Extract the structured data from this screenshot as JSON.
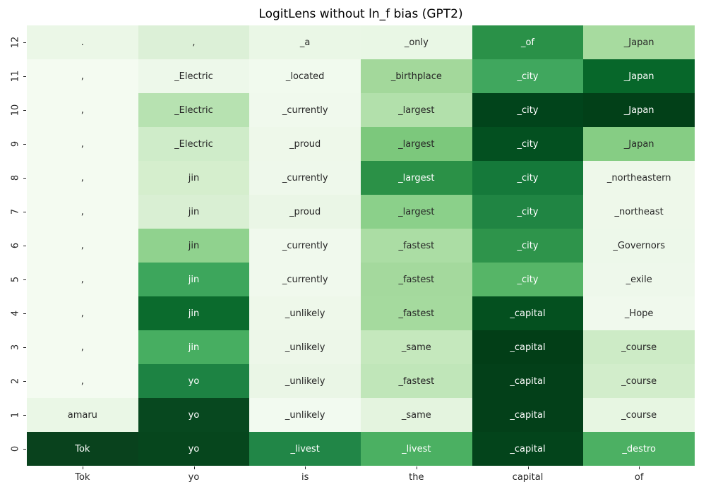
{
  "figure": {
    "background": "#ffffff",
    "tick_color": "#262626"
  },
  "chart_data": {
    "type": "heatmap",
    "title": "LogitLens without ln_f bias (GPT2)",
    "xlabel": "",
    "ylabel": "",
    "colormap": "Greens",
    "legend": "none",
    "grid": "off",
    "annotation_dark_text": "#262626",
    "annotation_light_text": "#ffffff",
    "x_tick_labels": [
      "Tok",
      "yo",
      "is",
      "the",
      "capital",
      "of"
    ],
    "y_tick_labels": [
      "12",
      "11",
      "10",
      "9",
      "8",
      "7",
      "6",
      "5",
      "4",
      "3",
      "2",
      "1",
      "0"
    ],
    "rows": [
      {
        "layer": "12",
        "cells": [
          {
            "token": ".",
            "color": "#ebf7e7"
          },
          {
            "token": ",",
            "color": "#dcf0d7"
          },
          {
            "token": "_a",
            "color": "#eaf7e6"
          },
          {
            "token": "_only",
            "color": "#e9f7e5"
          },
          {
            "token": "_of",
            "color": "#2a9148"
          },
          {
            "token": "_Japan",
            "color": "#a7db9f"
          }
        ]
      },
      {
        "layer": "11",
        "cells": [
          {
            "token": ",",
            "color": "#f4fbf1"
          },
          {
            "token": "_Electric",
            "color": "#edf8ea"
          },
          {
            "token": "_located",
            "color": "#f1faee"
          },
          {
            "token": "_birthplace",
            "color": "#a3d89b"
          },
          {
            "token": "_city",
            "color": "#40a75e"
          },
          {
            "token": "_Japan",
            "color": "#07672a"
          }
        ]
      },
      {
        "layer": "10",
        "cells": [
          {
            "token": ",",
            "color": "#f4fbf1"
          },
          {
            "token": "_Electric",
            "color": "#b7e2b1"
          },
          {
            "token": "_currently",
            "color": "#f0f9ed"
          },
          {
            "token": "_largest",
            "color": "#b2e0ab"
          },
          {
            "token": "_city",
            "color": "#01441b"
          },
          {
            "token": "_Japan",
            "color": "#024018"
          }
        ]
      },
      {
        "layer": "9",
        "cells": [
          {
            "token": ",",
            "color": "#f4fbf1"
          },
          {
            "token": "_Electric",
            "color": "#cfecc9"
          },
          {
            "token": "_proud",
            "color": "#eef8ea"
          },
          {
            "token": "_largest",
            "color": "#7cc87c"
          },
          {
            "token": "_city",
            "color": "#035020"
          },
          {
            "token": "_Japan",
            "color": "#86cd84"
          }
        ]
      },
      {
        "layer": "8",
        "cells": [
          {
            "token": ",",
            "color": "#f4fbf1"
          },
          {
            "token": "jin",
            "color": "#d5eecd"
          },
          {
            "token": "_currently",
            "color": "#eef8eb"
          },
          {
            "token": "_largest",
            "color": "#2b9147"
          },
          {
            "token": "_city",
            "color": "#15793a"
          },
          {
            "token": "_northeastern",
            "color": "#eef8ea"
          }
        ]
      },
      {
        "layer": "7",
        "cells": [
          {
            "token": ",",
            "color": "#f4fbf1"
          },
          {
            "token": "jin",
            "color": "#d9efd3"
          },
          {
            "token": "_proud",
            "color": "#eaf6e6"
          },
          {
            "token": "_largest",
            "color": "#8bd08a"
          },
          {
            "token": "_city",
            "color": "#208543"
          },
          {
            "token": "_northeast",
            "color": "#eef8ea"
          }
        ]
      },
      {
        "layer": "6",
        "cells": [
          {
            "token": ",",
            "color": "#f4fbf1"
          },
          {
            "token": "jin",
            "color": "#90d28e"
          },
          {
            "token": "_currently",
            "color": "#f0f9ed"
          },
          {
            "token": "_fastest",
            "color": "#abdda4"
          },
          {
            "token": "_city",
            "color": "#2e944b"
          },
          {
            "token": "_Governors",
            "color": "#edf8ea"
          }
        ]
      },
      {
        "layer": "5",
        "cells": [
          {
            "token": ",",
            "color": "#f4fbf1"
          },
          {
            "token": "jin",
            "color": "#3da65c"
          },
          {
            "token": "_currently",
            "color": "#f0f9ed"
          },
          {
            "token": "_fastest",
            "color": "#a4d99d"
          },
          {
            "token": "_city",
            "color": "#56b567"
          },
          {
            "token": "_exile",
            "color": "#eef8eb"
          }
        ]
      },
      {
        "layer": "4",
        "cells": [
          {
            "token": ",",
            "color": "#f4fbf1"
          },
          {
            "token": "jin",
            "color": "#0b6b2d"
          },
          {
            "token": "_unlikely",
            "color": "#eef8ea"
          },
          {
            "token": "_fastest",
            "color": "#a5da9e"
          },
          {
            "token": "_capital",
            "color": "#04501f"
          },
          {
            "token": "_Hope",
            "color": "#f0f9ed"
          }
        ]
      },
      {
        "layer": "3",
        "cells": [
          {
            "token": ",",
            "color": "#f4fbf1"
          },
          {
            "token": "jin",
            "color": "#47ae61"
          },
          {
            "token": "_unlikely",
            "color": "#edf7e9"
          },
          {
            "token": "_same",
            "color": "#c5e8bd"
          },
          {
            "token": "_capital",
            "color": "#023e17"
          },
          {
            "token": "_course",
            "color": "#cdebc6"
          }
        ]
      },
      {
        "layer": "2",
        "cells": [
          {
            "token": ",",
            "color": "#f4fbf1"
          },
          {
            "token": "yo",
            "color": "#1d8343"
          },
          {
            "token": "_unlikely",
            "color": "#eaf6e6"
          },
          {
            "token": "_fastest",
            "color": "#c0e6b9"
          },
          {
            "token": "_capital",
            "color": "#034019"
          },
          {
            "token": "_course",
            "color": "#d2edcb"
          }
        ]
      },
      {
        "layer": "1",
        "cells": [
          {
            "token": "amaru",
            "color": "#eaf7e6"
          },
          {
            "token": "yo",
            "color": "#07481f"
          },
          {
            "token": "_unlikely",
            "color": "#f2faf0"
          },
          {
            "token": "_same",
            "color": "#e4f4df"
          },
          {
            "token": "_capital",
            "color": "#034019"
          },
          {
            "token": "_course",
            "color": "#e7f6e2"
          }
        ]
      },
      {
        "layer": "0",
        "cells": [
          {
            "token": "Tok",
            "color": "#09421d"
          },
          {
            "token": "yo",
            "color": "#06461d"
          },
          {
            "token": "_livest",
            "color": "#218647"
          },
          {
            "token": "_livest",
            "color": "#4bb062"
          },
          {
            "token": "_capital",
            "color": "#03441b"
          },
          {
            "token": "_destro",
            "color": "#4cb063"
          }
        ]
      }
    ]
  }
}
